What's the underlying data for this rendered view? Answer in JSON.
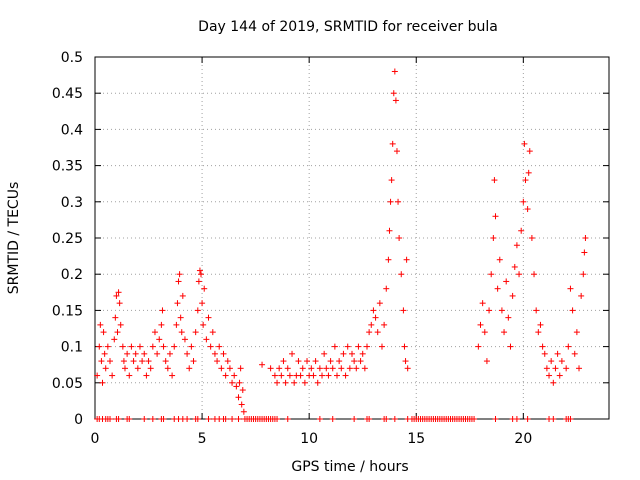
{
  "chart_data": {
    "type": "scatter",
    "title": "Day 144 of 2019, SRMTID for receiver bula",
    "xlabel": "GPS time / hours",
    "ylabel": "SRMTID / TECUs",
    "xlim": [
      0,
      24
    ],
    "ylim": [
      0,
      0.5
    ],
    "xticks": [
      0,
      5,
      10,
      15,
      20
    ],
    "xtick_labels": [
      "0",
      "5",
      "10",
      "15",
      "20"
    ],
    "yticks": [
      0,
      0.05,
      0.1,
      0.15,
      0.2,
      0.25,
      0.3,
      0.35,
      0.4,
      0.45,
      0.5
    ],
    "ytick_labels": [
      "0",
      "0.05",
      "0.1",
      "0.15",
      "0.2",
      "0.25",
      "0.3",
      "0.35",
      "0.4",
      "0.45",
      "0.5"
    ],
    "grid": true,
    "marker": "+",
    "color": "#ff0000",
    "series": [
      {
        "name": "SRMTID",
        "points": [
          [
            0.1,
            0.06
          ],
          [
            0.2,
            0.1
          ],
          [
            0.25,
            0.13
          ],
          [
            0.3,
            0.08
          ],
          [
            0.35,
            0.05
          ],
          [
            0.4,
            0.12
          ],
          [
            0.45,
            0.09
          ],
          [
            0.5,
            0.07
          ],
          [
            0.6,
            0.1
          ],
          [
            0.7,
            0.08
          ],
          [
            0.8,
            0.06
          ],
          [
            0.9,
            0.11
          ],
          [
            0.95,
            0.14
          ],
          [
            1.0,
            0.17
          ],
          [
            1.05,
            0.12
          ],
          [
            1.1,
            0.175
          ],
          [
            1.15,
            0.16
          ],
          [
            1.2,
            0.13
          ],
          [
            1.3,
            0.1
          ],
          [
            1.35,
            0.08
          ],
          [
            1.4,
            0.07
          ],
          [
            1.5,
            0.09
          ],
          [
            1.6,
            0.06
          ],
          [
            1.7,
            0.1
          ],
          [
            1.8,
            0.08
          ],
          [
            1.9,
            0.09
          ],
          [
            2.0,
            0.07
          ],
          [
            2.1,
            0.1
          ],
          [
            2.2,
            0.08
          ],
          [
            2.3,
            0.09
          ],
          [
            2.4,
            0.06
          ],
          [
            2.5,
            0.08
          ],
          [
            2.6,
            0.07
          ],
          [
            2.7,
            0.1
          ],
          [
            2.8,
            0.12
          ],
          [
            2.9,
            0.09
          ],
          [
            3.0,
            0.11
          ],
          [
            3.1,
            0.13
          ],
          [
            3.15,
            0.15
          ],
          [
            3.2,
            0.1
          ],
          [
            3.3,
            0.08
          ],
          [
            3.4,
            0.07
          ],
          [
            3.5,
            0.09
          ],
          [
            3.6,
            0.06
          ],
          [
            3.7,
            0.1
          ],
          [
            3.8,
            0.13
          ],
          [
            3.85,
            0.16
          ],
          [
            3.9,
            0.19
          ],
          [
            3.95,
            0.2
          ],
          [
            4.0,
            0.14
          ],
          [
            4.05,
            0.12
          ],
          [
            4.1,
            0.17
          ],
          [
            4.2,
            0.11
          ],
          [
            4.3,
            0.09
          ],
          [
            4.4,
            0.07
          ],
          [
            4.5,
            0.1
          ],
          [
            4.6,
            0.08
          ],
          [
            4.7,
            0.12
          ],
          [
            4.8,
            0.15
          ],
          [
            4.85,
            0.19
          ],
          [
            4.9,
            0.205
          ],
          [
            4.95,
            0.2
          ],
          [
            5.0,
            0.16
          ],
          [
            5.05,
            0.13
          ],
          [
            5.1,
            0.18
          ],
          [
            5.2,
            0.11
          ],
          [
            5.3,
            0.14
          ],
          [
            5.4,
            0.1
          ],
          [
            5.5,
            0.12
          ],
          [
            5.6,
            0.09
          ],
          [
            5.7,
            0.08
          ],
          [
            5.8,
            0.1
          ],
          [
            5.9,
            0.07
          ],
          [
            6.0,
            0.09
          ],
          [
            6.1,
            0.06
          ],
          [
            6.2,
            0.08
          ],
          [
            6.3,
            0.07
          ],
          [
            6.4,
            0.05
          ],
          [
            6.5,
            0.06
          ],
          [
            6.6,
            0.045
          ],
          [
            6.7,
            0.03
          ],
          [
            6.75,
            0.05
          ],
          [
            6.8,
            0.07
          ],
          [
            6.85,
            0.02
          ],
          [
            6.9,
            0.04
          ],
          [
            6.95,
            0.01
          ],
          [
            7.8,
            0.075
          ],
          [
            8.2,
            0.07
          ],
          [
            8.4,
            0.06
          ],
          [
            8.5,
            0.05
          ],
          [
            8.6,
            0.07
          ],
          [
            8.7,
            0.06
          ],
          [
            8.8,
            0.08
          ],
          [
            8.9,
            0.05
          ],
          [
            9.0,
            0.07
          ],
          [
            9.1,
            0.06
          ],
          [
            9.2,
            0.09
          ],
          [
            9.3,
            0.05
          ],
          [
            9.4,
            0.06
          ],
          [
            9.5,
            0.08
          ],
          [
            9.6,
            0.06
          ],
          [
            9.7,
            0.07
          ],
          [
            9.8,
            0.05
          ],
          [
            9.9,
            0.08
          ],
          [
            10.0,
            0.06
          ],
          [
            10.1,
            0.07
          ],
          [
            10.2,
            0.06
          ],
          [
            10.3,
            0.08
          ],
          [
            10.4,
            0.05
          ],
          [
            10.5,
            0.07
          ],
          [
            10.6,
            0.06
          ],
          [
            10.7,
            0.09
          ],
          [
            10.8,
            0.07
          ],
          [
            10.9,
            0.06
          ],
          [
            11.0,
            0.08
          ],
          [
            11.1,
            0.07
          ],
          [
            11.2,
            0.1
          ],
          [
            11.3,
            0.06
          ],
          [
            11.4,
            0.08
          ],
          [
            11.5,
            0.07
          ],
          [
            11.6,
            0.09
          ],
          [
            11.7,
            0.06
          ],
          [
            11.8,
            0.1
          ],
          [
            11.9,
            0.07
          ],
          [
            12.0,
            0.09
          ],
          [
            12.1,
            0.08
          ],
          [
            12.2,
            0.07
          ],
          [
            12.3,
            0.1
          ],
          [
            12.4,
            0.08
          ],
          [
            12.5,
            0.09
          ],
          [
            12.6,
            0.07
          ],
          [
            12.7,
            0.1
          ],
          [
            12.8,
            0.12
          ],
          [
            12.9,
            0.13
          ],
          [
            13.0,
            0.15
          ],
          [
            13.1,
            0.14
          ],
          [
            13.2,
            0.12
          ],
          [
            13.3,
            0.16
          ],
          [
            13.4,
            0.1
          ],
          [
            13.5,
            0.13
          ],
          [
            13.6,
            0.18
          ],
          [
            13.7,
            0.22
          ],
          [
            13.75,
            0.26
          ],
          [
            13.8,
            0.3
          ],
          [
            13.85,
            0.33
          ],
          [
            13.9,
            0.38
          ],
          [
            13.95,
            0.45
          ],
          [
            14.0,
            0.48
          ],
          [
            14.05,
            0.44
          ],
          [
            14.1,
            0.37
          ],
          [
            14.15,
            0.3
          ],
          [
            14.2,
            0.25
          ],
          [
            14.3,
            0.2
          ],
          [
            14.4,
            0.15
          ],
          [
            14.45,
            0.1
          ],
          [
            14.5,
            0.08
          ],
          [
            14.55,
            0.22
          ],
          [
            14.6,
            0.07
          ],
          [
            17.9,
            0.1
          ],
          [
            18.0,
            0.13
          ],
          [
            18.1,
            0.16
          ],
          [
            18.2,
            0.12
          ],
          [
            18.3,
            0.08
          ],
          [
            18.4,
            0.15
          ],
          [
            18.5,
            0.2
          ],
          [
            18.6,
            0.25
          ],
          [
            18.65,
            0.33
          ],
          [
            18.7,
            0.28
          ],
          [
            18.8,
            0.18
          ],
          [
            18.9,
            0.22
          ],
          [
            19.0,
            0.15
          ],
          [
            19.1,
            0.12
          ],
          [
            19.2,
            0.19
          ],
          [
            19.3,
            0.14
          ],
          [
            19.4,
            0.1
          ],
          [
            19.5,
            0.17
          ],
          [
            19.6,
            0.21
          ],
          [
            19.7,
            0.24
          ],
          [
            19.8,
            0.2
          ],
          [
            19.9,
            0.26
          ],
          [
            20.0,
            0.3
          ],
          [
            20.05,
            0.38
          ],
          [
            20.1,
            0.33
          ],
          [
            20.2,
            0.29
          ],
          [
            20.25,
            0.34
          ],
          [
            20.3,
            0.37
          ],
          [
            20.4,
            0.25
          ],
          [
            20.5,
            0.2
          ],
          [
            20.6,
            0.15
          ],
          [
            20.7,
            0.12
          ],
          [
            20.8,
            0.13
          ],
          [
            20.9,
            0.1
          ],
          [
            21.0,
            0.09
          ],
          [
            21.1,
            0.07
          ],
          [
            21.2,
            0.06
          ],
          [
            21.3,
            0.08
          ],
          [
            21.4,
            0.05
          ],
          [
            21.5,
            0.07
          ],
          [
            21.6,
            0.09
          ],
          [
            21.7,
            0.06
          ],
          [
            21.8,
            0.08
          ],
          [
            22.0,
            0.07
          ],
          [
            22.1,
            0.1
          ],
          [
            22.2,
            0.18
          ],
          [
            22.3,
            0.15
          ],
          [
            22.4,
            0.09
          ],
          [
            22.5,
            0.12
          ],
          [
            22.6,
            0.07
          ],
          [
            22.7,
            0.17
          ],
          [
            22.8,
            0.2
          ],
          [
            22.85,
            0.23
          ],
          [
            22.9,
            0.25
          ]
        ],
        "zero_points": [
          0.1,
          0.2,
          0.35,
          0.5,
          0.6,
          0.7,
          1.0,
          1.1,
          1.5,
          1.6,
          2.3,
          2.7,
          3.1,
          3.2,
          3.7,
          3.9,
          4.1,
          4.3,
          4.7,
          4.8,
          5.3,
          5.6,
          5.8,
          6.0,
          6.1,
          6.4,
          6.7,
          7.0,
          7.1,
          7.2,
          7.3,
          7.4,
          7.5,
          7.6,
          7.7,
          7.8,
          7.9,
          8.0,
          8.1,
          8.2,
          8.3,
          8.4,
          8.5,
          9.0,
          10.5,
          11.1,
          12.1,
          12.7,
          12.8,
          13.5,
          13.6,
          14.0,
          14.6,
          14.8,
          14.9,
          15.0,
          15.1,
          15.2,
          15.3,
          15.4,
          15.5,
          15.6,
          15.7,
          15.8,
          15.9,
          16.0,
          16.1,
          16.2,
          16.3,
          16.4,
          16.5,
          16.6,
          16.7,
          16.8,
          16.9,
          17.0,
          17.1,
          17.2,
          17.3,
          17.4,
          17.5,
          17.6,
          17.7,
          18.7,
          19.5,
          19.7,
          20.2,
          21.2,
          21.4,
          22.0,
          22.1,
          22.2
        ]
      }
    ]
  }
}
